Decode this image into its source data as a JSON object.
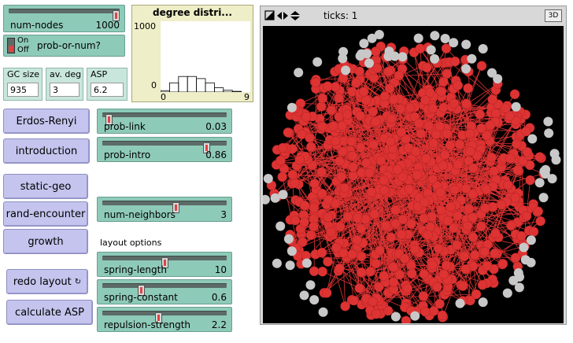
{
  "sliders": [
    {
      "label": "num-nodes",
      "value": "1000",
      "pos": 1.0
    },
    {
      "label": "prob-link",
      "value": "0.03",
      "pos": 0.03
    },
    {
      "label": "prob-intro",
      "value": "0.86",
      "pos": 0.86
    },
    {
      "label": "num-neighbors",
      "value": "3",
      "pos": 0.6
    },
    {
      "label": "spring-length",
      "value": "10",
      "pos": 0.5
    },
    {
      "label": "spring-constant",
      "value": "0.6",
      "pos": 0.3
    },
    {
      "label": "repulsion-strength",
      "value": "2.2",
      "pos": 0.45
    }
  ],
  "switch": {
    "on": "On",
    "off": "Off",
    "label": "prob-or-num?"
  },
  "monitors": [
    {
      "label": "GC size",
      "value": "935"
    },
    {
      "label": "av. deg",
      "value": "3"
    },
    {
      "label": "ASP",
      "value": "6.2"
    }
  ],
  "buttons": {
    "erdos": "Erdos-Renyi",
    "introduction": "introduction",
    "static_geo": "static-geo",
    "rand_encounter": "rand-encounter",
    "growth": "growth",
    "redo_layout": "redo layout",
    "calculate_asp": "calculate ASP"
  },
  "layout_options_label": "layout options",
  "world": {
    "ticks": "ticks: 1",
    "threed_label": "3D"
  },
  "chart_data": {
    "type": "bar",
    "title": "degree distri...",
    "x": [
      0,
      1,
      2,
      3,
      4,
      5,
      6,
      7,
      8,
      9
    ],
    "values": [
      20,
      130,
      220,
      220,
      190,
      130,
      60,
      25,
      10,
      0
    ],
    "xlim": [
      0,
      9
    ],
    "ylim": [
      0,
      1000
    ],
    "xtick_labels": [
      "0",
      "9"
    ],
    "ytick_labels": [
      "0",
      "1000"
    ]
  },
  "colors": {
    "node_red": "#dd3333",
    "node_gray": "#c8c8c8",
    "link": "#dd3333"
  }
}
